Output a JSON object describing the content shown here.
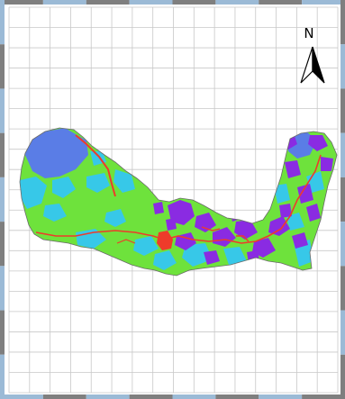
{
  "north_arrow": {
    "label": "N"
  },
  "colors": {
    "grid_line": "#c8c8c8",
    "frame_segment_dark": "#7f7f7f",
    "frame_segment_light": "#9bbad6",
    "frame_background": "#ffffff",
    "class_green": "#6ee23c",
    "class_cyan": "#37c8e8",
    "class_blue": "#5a7de6",
    "class_purple": "#8a2be2",
    "class_red": "#ee3b2a",
    "watershed_outline": "#6a6a6a"
  },
  "legend_visible": false,
  "scale_bar_visible": false
}
